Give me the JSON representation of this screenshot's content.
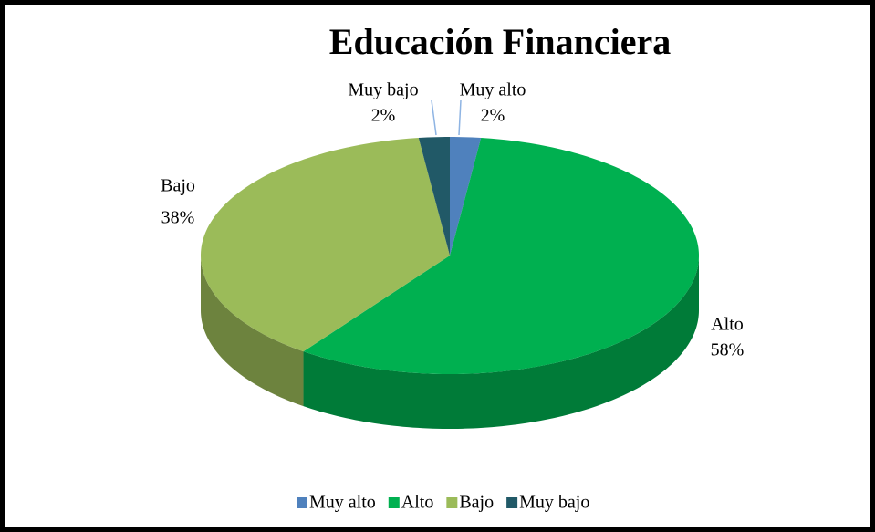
{
  "chart_data": {
    "type": "pie3d",
    "title": "Educación Financiera",
    "categories": [
      "Muy alto",
      "Alto",
      "Bajo",
      "Muy bajo"
    ],
    "values": [
      2,
      58,
      38,
      2
    ],
    "value_labels": [
      "2%",
      "58%",
      "38%",
      "2%"
    ],
    "colors": [
      "#4f81bd",
      "#00b050",
      "#9bbb59",
      "#215967"
    ],
    "legend": "bottom"
  }
}
